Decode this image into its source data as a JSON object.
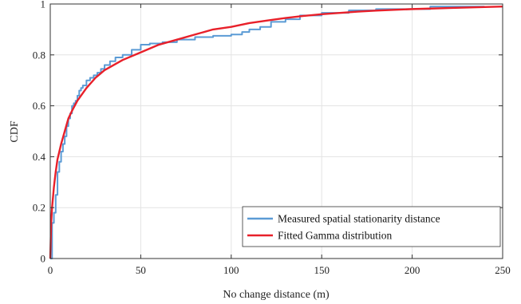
{
  "chart_data": {
    "type": "line",
    "xlabel": "No change distance  (m)",
    "ylabel": "CDF",
    "xlim": [
      0,
      250
    ],
    "ylim": [
      0,
      1
    ],
    "xticks": [
      0,
      50,
      100,
      150,
      200,
      250
    ],
    "yticks": [
      0,
      0.2,
      0.4,
      0.6,
      0.8,
      1
    ],
    "xtick_labels": [
      "0",
      "50",
      "100",
      "150",
      "200",
      "250"
    ],
    "ytick_labels": [
      "0",
      "0.2",
      "0.4",
      "0.6",
      "0.8",
      "1"
    ],
    "grid": true,
    "legend_position": "bottom-right",
    "series": [
      {
        "name": "Measured spatial stationarity distance",
        "color": "#5b9bd5",
        "style": "step",
        "x": [
          0,
          1,
          1,
          2,
          2,
          3,
          3,
          4,
          4,
          5,
          5,
          6,
          6,
          7,
          7,
          8,
          8,
          9,
          9,
          10,
          10,
          11,
          11,
          12,
          12,
          13,
          13,
          14,
          14,
          15,
          15,
          16,
          16,
          17,
          17,
          18,
          18,
          20,
          20,
          22,
          22,
          24,
          24,
          26,
          26,
          28,
          28,
          30,
          30,
          33,
          33,
          36,
          36,
          40,
          40,
          45,
          45,
          50,
          50,
          55,
          55,
          62,
          62,
          70,
          70,
          80,
          80,
          90,
          90,
          100,
          100,
          106,
          106,
          110,
          110,
          116,
          116,
          122,
          122,
          130,
          130,
          138,
          138,
          150,
          150,
          165,
          165,
          180,
          180,
          210,
          210,
          240
        ],
        "y": [
          0,
          0,
          0.14,
          0.14,
          0.18,
          0.18,
          0.25,
          0.25,
          0.34,
          0.34,
          0.38,
          0.38,
          0.42,
          0.42,
          0.45,
          0.45,
          0.48,
          0.48,
          0.52,
          0.52,
          0.55,
          0.55,
          0.57,
          0.57,
          0.6,
          0.6,
          0.61,
          0.61,
          0.62,
          0.62,
          0.64,
          0.64,
          0.66,
          0.66,
          0.67,
          0.67,
          0.68,
          0.68,
          0.7,
          0.7,
          0.71,
          0.71,
          0.72,
          0.72,
          0.73,
          0.73,
          0.745,
          0.745,
          0.76,
          0.76,
          0.775,
          0.775,
          0.79,
          0.79,
          0.8,
          0.8,
          0.82,
          0.82,
          0.84,
          0.84,
          0.845,
          0.845,
          0.85,
          0.85,
          0.86,
          0.86,
          0.87,
          0.87,
          0.875,
          0.875,
          0.88,
          0.88,
          0.89,
          0.89,
          0.9,
          0.9,
          0.91,
          0.91,
          0.93,
          0.93,
          0.94,
          0.94,
          0.955,
          0.955,
          0.965,
          0.965,
          0.975,
          0.975,
          0.98,
          0.98,
          0.99,
          0.99
        ]
      },
      {
        "name": "Fitted Gamma distribution",
        "color": "#e8202a",
        "style": "line",
        "x": [
          0,
          0.5,
          1,
          2,
          3,
          4,
          6,
          8,
          10,
          12,
          15,
          20,
          25,
          30,
          40,
          50,
          60,
          70,
          80,
          90,
          100,
          110,
          120,
          130,
          140,
          150,
          160,
          170,
          180,
          190,
          200,
          210,
          220,
          230,
          240,
          250
        ],
        "y": [
          0,
          0.14,
          0.2,
          0.28,
          0.34,
          0.39,
          0.45,
          0.5,
          0.55,
          0.58,
          0.62,
          0.67,
          0.71,
          0.74,
          0.78,
          0.81,
          0.84,
          0.86,
          0.88,
          0.9,
          0.91,
          0.925,
          0.935,
          0.945,
          0.953,
          0.96,
          0.965,
          0.97,
          0.974,
          0.977,
          0.98,
          0.982,
          0.984,
          0.986,
          0.988,
          0.99
        ]
      }
    ]
  }
}
